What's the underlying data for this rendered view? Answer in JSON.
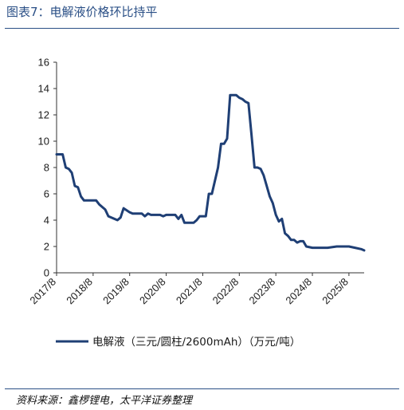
{
  "header": {
    "title": "图表7：电解液价格环比持平"
  },
  "footer": {
    "source_label": "资料来源：",
    "source_text": "鑫椤锂电，太平洋证券整理"
  },
  "chart_data": {
    "type": "line",
    "title": "",
    "xlabel": "",
    "ylabel": "",
    "ylim": [
      0,
      16
    ],
    "yticks": [
      0,
      2,
      4,
      6,
      8,
      10,
      12,
      14,
      16
    ],
    "x_tick_labels": [
      "2017/8",
      "2018/8",
      "2019/8",
      "2020/8",
      "2021/8",
      "2022/8",
      "2023/8",
      "2024/8",
      "2025/8"
    ],
    "x_range": [
      "2017/8",
      "2026/1"
    ],
    "legend_position": "bottom",
    "grid": false,
    "line_color": "#1f3f75",
    "series": [
      {
        "name": "电解液（三元/圆柱/2600mAh）（万元/吨）",
        "points": [
          [
            "2017/8",
            9.0
          ],
          [
            "2017/10",
            9.0
          ],
          [
            "2017/11",
            8.0
          ],
          [
            "2017/12",
            7.9
          ],
          [
            "2018/1",
            7.6
          ],
          [
            "2018/2",
            6.6
          ],
          [
            "2018/3",
            6.5
          ],
          [
            "2018/4",
            5.8
          ],
          [
            "2018/5",
            5.5
          ],
          [
            "2018/9",
            5.5
          ],
          [
            "2018/10",
            5.2
          ],
          [
            "2018/11",
            5.0
          ],
          [
            "2018/12",
            4.8
          ],
          [
            "2019/1",
            4.3
          ],
          [
            "2019/2",
            4.2
          ],
          [
            "2019/3",
            4.1
          ],
          [
            "2019/4",
            4.0
          ],
          [
            "2019/5",
            4.2
          ],
          [
            "2019/6",
            4.9
          ],
          [
            "2019/8",
            4.6
          ],
          [
            "2019/9",
            4.5
          ],
          [
            "2019/12",
            4.5
          ],
          [
            "2020/1",
            4.3
          ],
          [
            "2020/2",
            4.5
          ],
          [
            "2020/3",
            4.4
          ],
          [
            "2020/6",
            4.4
          ],
          [
            "2020/7",
            4.3
          ],
          [
            "2020/8",
            4.4
          ],
          [
            "2020/11",
            4.4
          ],
          [
            "2020/12",
            4.1
          ],
          [
            "2021/1",
            4.4
          ],
          [
            "2021/2",
            3.8
          ],
          [
            "2021/5",
            3.8
          ],
          [
            "2021/6",
            4.0
          ],
          [
            "2021/7",
            4.3
          ],
          [
            "2021/9",
            4.3
          ],
          [
            "2021/10",
            6.0
          ],
          [
            "2021/11",
            6.0
          ],
          [
            "2022/1",
            8.0
          ],
          [
            "2022/2",
            9.8
          ],
          [
            "2022/3",
            9.8
          ],
          [
            "2022/4",
            10.2
          ],
          [
            "2022/5",
            13.5
          ],
          [
            "2022/7",
            13.5
          ],
          [
            "2022/8",
            13.3
          ],
          [
            "2022/9",
            13.2
          ],
          [
            "2022/10",
            13.0
          ],
          [
            "2022/11",
            12.9
          ],
          [
            "2022/12",
            10.5
          ],
          [
            "2023/1",
            8.0
          ],
          [
            "2023/2",
            8.0
          ],
          [
            "2023/3",
            7.9
          ],
          [
            "2023/4",
            7.4
          ],
          [
            "2023/5",
            6.6
          ],
          [
            "2023/6",
            5.8
          ],
          [
            "2023/7",
            5.3
          ],
          [
            "2023/8",
            4.4
          ],
          [
            "2023/9",
            3.9
          ],
          [
            "2023/10",
            4.1
          ],
          [
            "2023/11",
            3.0
          ],
          [
            "2023/12",
            2.8
          ],
          [
            "2024/1",
            2.5
          ],
          [
            "2024/2",
            2.5
          ],
          [
            "2024/3",
            2.3
          ],
          [
            "2024/4",
            2.4
          ],
          [
            "2024/5",
            2.4
          ],
          [
            "2024/6",
            2.0
          ],
          [
            "2024/8",
            1.9
          ],
          [
            "2024/10",
            1.9
          ],
          [
            "2025/1",
            1.9
          ],
          [
            "2025/4",
            2.0
          ],
          [
            "2025/8",
            2.0
          ],
          [
            "2025/10",
            1.9
          ],
          [
            "2025/12",
            1.8
          ],
          [
            "2026/1",
            1.7
          ]
        ]
      }
    ]
  }
}
